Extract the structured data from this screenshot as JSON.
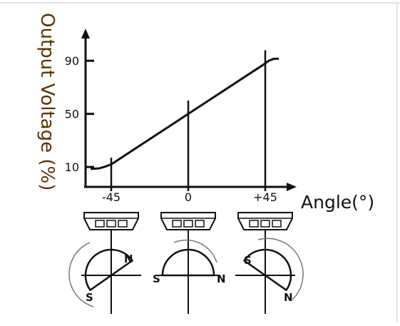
{
  "chart_data": {
    "type": "line",
    "title": "",
    "xlabel": "Angle(°)",
    "ylabel": "Output Voltage (%)",
    "x_tick_labels": [
      "-45",
      "0",
      "+45"
    ],
    "y_tick_labels": [
      "10",
      "50",
      "90"
    ],
    "x_ticks": [
      -45,
      0,
      45
    ],
    "y_ticks": [
      10,
      50,
      90
    ],
    "xlim": [
      -60,
      60
    ],
    "ylim": [
      -5,
      110
    ],
    "grid": false,
    "series": [
      {
        "values": [
          [
            -57,
            8.5
          ],
          [
            -52,
            9
          ],
          [
            -48,
            10.5
          ],
          [
            -45,
            12
          ],
          [
            0,
            50
          ],
          [
            45,
            88
          ],
          [
            47,
            90
          ],
          [
            50,
            91.5
          ],
          [
            53,
            91.5
          ]
        ]
      }
    ]
  },
  "sensors": [
    {
      "angle": -45,
      "poles": [
        "N",
        "S"
      ]
    },
    {
      "angle": 0,
      "poles": [
        "S",
        "N"
      ]
    },
    {
      "angle": 45,
      "poles": [
        "S",
        "N"
      ]
    }
  ],
  "colors": {
    "line": "#111111",
    "ylabel": "#5a3200",
    "frame": "#c8c8c8"
  }
}
